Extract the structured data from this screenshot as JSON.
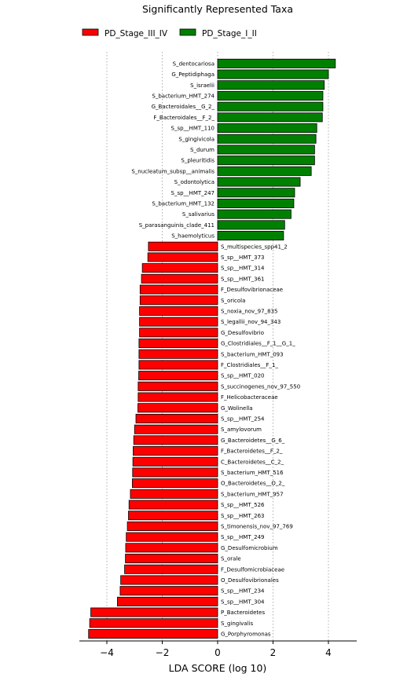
{
  "chart_data": {
    "type": "bar",
    "orientation": "horizontal",
    "title": "Significantly Represented Taxa",
    "xlabel": "LDA SCORE (log 10)",
    "ylabel": "",
    "xlim": [
      -4.6,
      4.6
    ],
    "xticks": [
      -4,
      -2,
      0,
      2,
      4
    ],
    "xtick_labels": [
      "−4",
      "−2",
      "0",
      "2",
      "4"
    ],
    "grid": "vertical-dotted",
    "legend": {
      "position": "top",
      "entries": [
        {
          "name": "PD_Stage_III_IV",
          "color": "#ff0000"
        },
        {
          "name": "PD_Stage_I_II",
          "color": "#008000"
        }
      ]
    },
    "series": [
      {
        "name": "PD_Stage_I_II",
        "color": "#008000",
        "categories": [
          "S_dentocariosa",
          "G_Peptidiphaga",
          "S_israelii",
          "S_bacterium_HMT_274",
          "G_Bacteroidales__G_2_",
          "F_Bacteroidales__F_2_",
          "S_sp__HMT_110",
          "S_gingivicola",
          "S_durum",
          "S_pleuritidis",
          "S_nucleatum_subsp__animalis",
          "S_odontolytica",
          "S_sp__HMT_247",
          "S_bacterium_HMT_132",
          "S_salivarius",
          "S_parasanguinis_clade_411",
          "S_haemolyticus"
        ],
        "values": [
          4.25,
          4.0,
          3.85,
          3.8,
          3.8,
          3.78,
          3.58,
          3.55,
          3.5,
          3.5,
          3.38,
          2.98,
          2.78,
          2.75,
          2.65,
          2.42,
          2.38
        ]
      },
      {
        "name": "PD_Stage_III_IV",
        "color": "#ff0000",
        "categories": [
          "S_multispecies_spp41_2",
          "S_sp__HMT_373",
          "S_sp__HMT_314",
          "S_sp__HMT_361",
          "F_Desulfovibrionaceae",
          "S_oricola",
          "S_noxia_nov_97_835",
          "S_legallii_nov_94_343",
          "G_Desulfovibrio",
          "G_Clostridiales__F_1__G_1_",
          "S_bacterium_HMT_093",
          "F_Clostridiales__F_1_",
          "S_sp__HMT_020",
          "S_succinogenes_nov_97_550",
          "F_Helicobacteraceae",
          "G_Wolinella",
          "S_sp__HMT_254",
          "S_amylovorum",
          "G_Bacteroidetes__G_6_",
          "F_Bacteroidetes__F_2_",
          "C_Bacteroidetes__C_2_",
          "S_bacterium_HMT_516",
          "O_Bacteroidetes__O_2_",
          "S_bacterium_HMT_957",
          "S_sp__HMT_526",
          "S_sp__HMT_263",
          "S_timonensis_nov_97_769",
          "S_sp__HMT_249",
          "G_Desulfomicrobium",
          "S_orale",
          "F_Desulfomicrobiaceae",
          "O_Desulfovibrionales",
          "S_sp__HMT_234",
          "S_sp__HMT_304",
          "P_Bacteroidetes",
          "S_gingivalis",
          "G_Porphyromonas"
        ],
        "values": [
          -2.5,
          -2.52,
          -2.72,
          -2.75,
          -2.8,
          -2.8,
          -2.82,
          -2.82,
          -2.82,
          -2.84,
          -2.84,
          -2.84,
          -2.85,
          -2.87,
          -2.87,
          -2.88,
          -2.95,
          -3.0,
          -3.03,
          -3.05,
          -3.06,
          -3.07,
          -3.08,
          -3.15,
          -3.2,
          -3.22,
          -3.26,
          -3.3,
          -3.32,
          -3.33,
          -3.36,
          -3.5,
          -3.52,
          -3.62,
          -4.58,
          -4.62,
          -4.66
        ]
      }
    ]
  }
}
